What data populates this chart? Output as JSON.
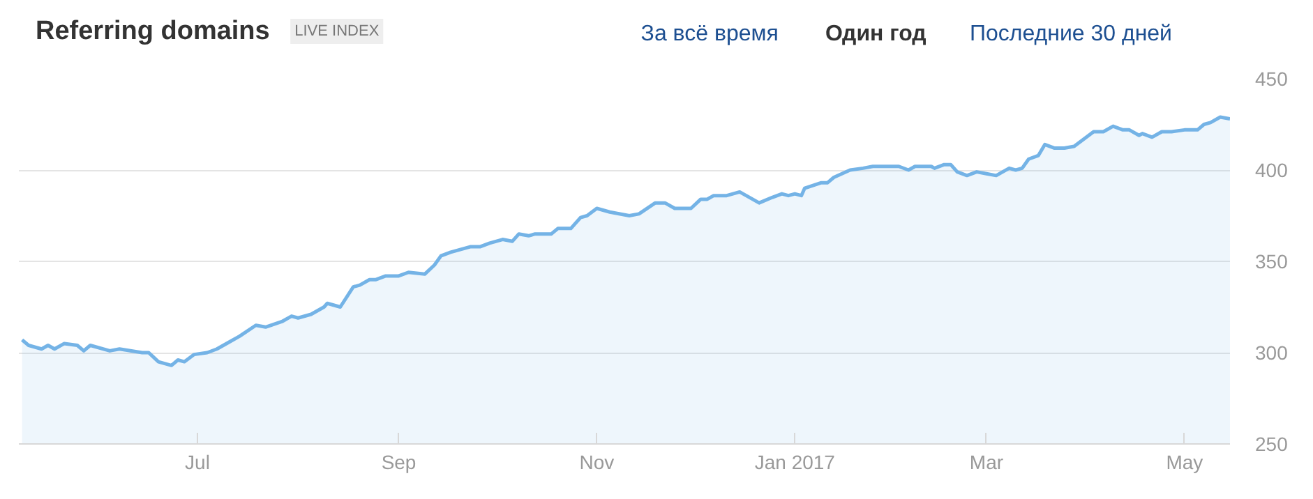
{
  "chart_data": {
    "type": "area",
    "title": "Referring domains",
    "subtitle": "LIVE INDEX",
    "annotations": [
      "За всё время",
      "Один год",
      "Последние 30 дней"
    ],
    "x": [
      "2016-05-08",
      "2016-05-10",
      "2016-05-14",
      "2016-05-16",
      "2016-05-18",
      "2016-05-21",
      "2016-05-25",
      "2016-05-27",
      "2016-05-29",
      "2016-06-04",
      "2016-06-07",
      "2016-06-14",
      "2016-06-16",
      "2016-06-19",
      "2016-06-23",
      "2016-06-25",
      "2016-06-27",
      "2016-06-30",
      "2016-07-04",
      "2016-07-07",
      "2016-07-11",
      "2016-07-14",
      "2016-07-19",
      "2016-07-22",
      "2016-07-27",
      "2016-07-30",
      "2016-08-01",
      "2016-08-05",
      "2016-08-09",
      "2016-08-10",
      "2016-08-14",
      "2016-08-18",
      "2016-08-20",
      "2016-08-23",
      "2016-08-25",
      "2016-08-28",
      "2016-09-01",
      "2016-09-04",
      "2016-09-09",
      "2016-09-12",
      "2016-09-14",
      "2016-09-17",
      "2016-09-23",
      "2016-09-26",
      "2016-09-29",
      "2016-10-03",
      "2016-10-06",
      "2016-10-08",
      "2016-10-11",
      "2016-10-13",
      "2016-10-18",
      "2016-10-20",
      "2016-10-24",
      "2016-10-27",
      "2016-10-29",
      "2016-11-01",
      "2016-11-05",
      "2016-11-11",
      "2016-11-14",
      "2016-11-19",
      "2016-11-22",
      "2016-11-25",
      "2016-11-30",
      "2016-12-03",
      "2016-12-05",
      "2016-12-07",
      "2016-12-11",
      "2016-12-15",
      "2016-12-21",
      "2016-12-25",
      "2016-12-28",
      "2016-12-30",
      "2017-01-01",
      "2017-01-03",
      "2017-01-04",
      "2017-01-09",
      "2017-01-11",
      "2017-01-13",
      "2017-01-18",
      "2017-01-22",
      "2017-01-25",
      "2017-01-31",
      "2017-02-02",
      "2017-02-05",
      "2017-02-07",
      "2017-02-12",
      "2017-02-13",
      "2017-02-16",
      "2017-02-18",
      "2017-02-20",
      "2017-02-23",
      "2017-02-26",
      "2017-03-01",
      "2017-03-04",
      "2017-03-08",
      "2017-03-10",
      "2017-03-12",
      "2017-03-14",
      "2017-03-17",
      "2017-03-19",
      "2017-03-22",
      "2017-03-25",
      "2017-03-28",
      "2017-03-31",
      "2017-04-03",
      "2017-04-06",
      "2017-04-09",
      "2017-04-12",
      "2017-04-14",
      "2017-04-17",
      "2017-04-18",
      "2017-04-21",
      "2017-04-24",
      "2017-04-27",
      "2017-05-01",
      "2017-05-03",
      "2017-05-05",
      "2017-05-07",
      "2017-05-09",
      "2017-05-12",
      "2017-05-15"
    ],
    "series": [
      {
        "color": "#74b3e6",
        "values": [
          307,
          304,
          302,
          304,
          302,
          305,
          304,
          301,
          304,
          301,
          302,
          300,
          300,
          295,
          293,
          296,
          295,
          299,
          300,
          302,
          306,
          309,
          315,
          314,
          317,
          320,
          319,
          321,
          325,
          327,
          325,
          336,
          337,
          340,
          340,
          342,
          342,
          344,
          343,
          348,
          353,
          355,
          358,
          358,
          360,
          362,
          361,
          365,
          364,
          365,
          365,
          368,
          368,
          374,
          375,
          379,
          377,
          375,
          376,
          382,
          382,
          379,
          379,
          384,
          384,
          386,
          386,
          388,
          382,
          385,
          387,
          386,
          387,
          386,
          390,
          393,
          393,
          396,
          400,
          401,
          402,
          402,
          402,
          400,
          402,
          402,
          401,
          403,
          403,
          399,
          397,
          399,
          398,
          397,
          401,
          400,
          401,
          406,
          408,
          414,
          412,
          412,
          413,
          417,
          421,
          421,
          424,
          422,
          422,
          419,
          420,
          418,
          421,
          421,
          422,
          422,
          422,
          425,
          426,
          429,
          428
        ]
      }
    ],
    "xlim": [
      "2016-05-07",
      "2017-05-15"
    ],
    "ylim": [
      250,
      450
    ],
    "xticks": [
      {
        "value": "2016-07-01",
        "label": "Jul"
      },
      {
        "value": "2016-09-01",
        "label": "Sep"
      },
      {
        "value": "2016-11-01",
        "label": "Nov"
      },
      {
        "value": "2017-01-01",
        "label": "Jan 2017"
      },
      {
        "value": "2017-03-01",
        "label": "Mar"
      },
      {
        "value": "2017-05-01",
        "label": "May"
      }
    ],
    "yticks": [
      250,
      300,
      350,
      400,
      450
    ],
    "grid": "y"
  }
}
